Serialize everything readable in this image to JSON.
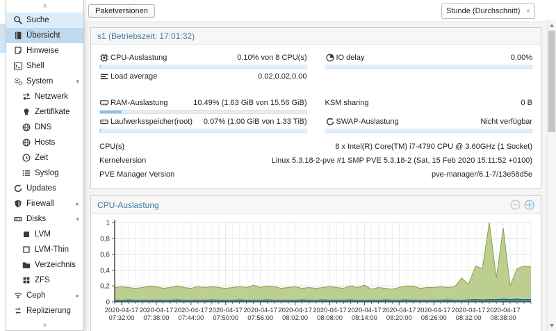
{
  "accent": {
    "selected_bg": "#bfd9ee",
    "hover_bg": "#ddeefb",
    "header_text": "#3e7ca6"
  },
  "sidebar": {
    "items": [
      {
        "label": "Suche",
        "icon": "search-icon",
        "indent": false,
        "state": "hover",
        "caret": ""
      },
      {
        "label": "Übersicht",
        "icon": "book-icon",
        "indent": false,
        "state": "selected",
        "caret": ""
      },
      {
        "label": "Hinweise",
        "icon": "note-icon",
        "indent": false,
        "state": "",
        "caret": ""
      },
      {
        "label": "Shell",
        "icon": "terminal-icon",
        "indent": false,
        "state": "",
        "caret": ""
      },
      {
        "label": "System",
        "icon": "gears-icon",
        "indent": false,
        "state": "",
        "caret": "down"
      },
      {
        "label": "Netzwerk",
        "icon": "exchange-icon",
        "indent": true,
        "state": "",
        "caret": ""
      },
      {
        "label": "Zertifikate",
        "icon": "certificate-icon",
        "indent": true,
        "state": "",
        "caret": ""
      },
      {
        "label": "DNS",
        "icon": "globe-icon",
        "indent": true,
        "state": "",
        "caret": ""
      },
      {
        "label": "Hosts",
        "icon": "globe-icon",
        "indent": true,
        "state": "",
        "caret": ""
      },
      {
        "label": "Zeit",
        "icon": "clock-icon",
        "indent": true,
        "state": "",
        "caret": ""
      },
      {
        "label": "Syslog",
        "icon": "list-icon",
        "indent": true,
        "state": "",
        "caret": ""
      },
      {
        "label": "Updates",
        "icon": "refresh-icon",
        "indent": false,
        "state": "",
        "caret": ""
      },
      {
        "label": "Firewall",
        "icon": "shield-icon",
        "indent": false,
        "state": "",
        "caret": "right"
      },
      {
        "label": "Disks",
        "icon": "hdd-icon",
        "indent": false,
        "state": "",
        "caret": "down"
      },
      {
        "label": "LVM",
        "icon": "square-filled-icon",
        "indent": true,
        "state": "",
        "caret": ""
      },
      {
        "label": "LVM-Thin",
        "icon": "square-outline-icon",
        "indent": true,
        "state": "",
        "caret": ""
      },
      {
        "label": "Verzeichnis",
        "icon": "folder-icon",
        "indent": true,
        "state": "",
        "caret": ""
      },
      {
        "label": "ZFS",
        "icon": "grid-icon",
        "indent": true,
        "state": "",
        "caret": ""
      },
      {
        "label": "Ceph",
        "icon": "ceph-icon",
        "indent": false,
        "state": "",
        "caret": "right"
      },
      {
        "label": "Replizierung",
        "icon": "replication-icon",
        "indent": false,
        "state": "",
        "caret": ""
      }
    ]
  },
  "toolbar": {
    "package_versions_label": "Paketversionen",
    "timeframe_value": "Stunde (Durchschnitt)"
  },
  "status_panel": {
    "title": "s1 (Betriebszeit: 17:01:32)",
    "left_rows": [
      {
        "icon": "processor-icon",
        "label": "CPU-Auslastung",
        "value": "0.10% von 8 CPU(s)",
        "bar": 0.001
      },
      {
        "icon": "bars-icon",
        "label": "Load average",
        "value": "0.02,0.02,0.00",
        "bar": null
      },
      {
        "gap": true
      },
      {
        "icon": "memory-icon",
        "label": "RAM-Auslastung",
        "value": "10.49% (1.63 GiB von 15.56 GiB)",
        "bar": 0.1049
      },
      {
        "icon": "hdd-icon",
        "label": "Laufwerksspeicher(root)",
        "value": "0.07% (1.00 GiB von 1.33 TiB)",
        "bar": 0.0007
      }
    ],
    "right_rows": [
      {
        "icon": "io-clock-icon",
        "label": "IO delay",
        "value": "0.00%",
        "bar": 0.0
      },
      {
        "spacer": true
      },
      {
        "gap": true
      },
      {
        "icon": null,
        "label": "KSM sharing",
        "value": "0 B",
        "bar": null
      },
      {
        "icon": "swap-icon",
        "label": "SWAP-Auslastung",
        "value": "Nicht verfügbar",
        "bar": 0.0
      }
    ],
    "info_rows": [
      {
        "label": "CPU(s)",
        "value": "8 x Intel(R) Core(TM) i7-4790 CPU @ 3.60GHz (1 Socket)"
      },
      {
        "label": "Kernelversion",
        "value": "Linux 5.3.18-2-pve #1 SMP PVE 5.3.18-2 (Sat, 15 Feb 2020 15:11:52 +0100)"
      },
      {
        "label": "PVE Manager Version",
        "value": "pve-manager/6.1-7/13e58d5e"
      }
    ]
  },
  "chart_panel": {
    "title": "CPU-Auslastung"
  },
  "chart_data": {
    "type": "area",
    "title": "CPU-Auslastung",
    "xlabel": "",
    "ylabel": "",
    "ylim": [
      0,
      1
    ],
    "grid": true,
    "legend": "none",
    "yticks": [
      {
        "v": 0,
        "label": "0"
      },
      {
        "v": 0.2,
        "label": "0,2"
      },
      {
        "v": 0.4,
        "label": "0,4"
      },
      {
        "v": 0.6,
        "label": "0,6"
      },
      {
        "v": 0.8,
        "label": "0,8"
      },
      {
        "v": 1,
        "label": "1"
      }
    ],
    "xticks": [
      {
        "date": "2020-04-17",
        "time": "07:32:00"
      },
      {
        "date": "2020-04-17",
        "time": "07:38:00"
      },
      {
        "date": "2020-04-17",
        "time": "07:44:00"
      },
      {
        "date": "2020-04-17",
        "time": "07:50:00"
      },
      {
        "date": "2020-04-17",
        "time": "07:56:00"
      },
      {
        "date": "2020-04-17",
        "time": "08:02:00"
      },
      {
        "date": "2020-04-17",
        "time": "08:08:00"
      },
      {
        "date": "2020-04-17",
        "time": "08:14:00"
      },
      {
        "date": "2020-04-17",
        "time": "08:20:00"
      },
      {
        "date": "2020-04-17",
        "time": "08:26:00"
      },
      {
        "date": "2020-04-17",
        "time": "08:32:00"
      },
      {
        "date": "2020-04-17",
        "time": "08:38:00"
      }
    ],
    "x_major_start_index": 1,
    "x_major_step": 5,
    "series": [
      {
        "name": "cpu",
        "fill": "#b9cc8a",
        "line": "#87a04b",
        "values": [
          0.18,
          0.19,
          0.18,
          0.17,
          0.18,
          0.2,
          0.19,
          0.17,
          0.18,
          0.2,
          0.18,
          0.17,
          0.19,
          0.18,
          0.19,
          0.18,
          0.17,
          0.18,
          0.19,
          0.18,
          0.21,
          0.18,
          0.2,
          0.19,
          0.17,
          0.18,
          0.19,
          0.17,
          0.18,
          0.17,
          0.18,
          0.19,
          0.18,
          0.17,
          0.2,
          0.18,
          0.21,
          0.16,
          0.18,
          0.17,
          0.16,
          0.18,
          0.2,
          0.2,
          0.17,
          0.18,
          0.18,
          0.19,
          0.18,
          0.19,
          0.3,
          0.22,
          0.45,
          0.42,
          1.0,
          0.3,
          0.93,
          0.2,
          0.42,
          0.45,
          0.44
        ]
      },
      {
        "name": "iowait",
        "fill": "#35909f",
        "line": "#135c6b",
        "values": [
          0.02,
          0.02,
          0.025,
          0.02,
          0.02,
          0.02,
          0.02,
          0.02,
          0.02,
          0.025,
          0.02,
          0.02,
          0.02,
          0.02,
          0.025,
          0.02,
          0.02,
          0.02,
          0.025,
          0.02,
          0.02,
          0.02,
          0.025,
          0.02,
          0.02,
          0.02,
          0.02,
          0.025,
          0.02,
          0.02,
          0.025,
          0.02,
          0.02,
          0.02,
          0.025,
          0.02,
          0.02,
          0.02,
          0.02,
          0.025,
          0.02,
          0.02,
          0.025,
          0.02,
          0.02,
          0.02,
          0.02,
          0.02,
          0.025,
          0.02,
          0.02,
          0.025,
          0.03,
          0.025,
          0.03,
          0.03,
          0.035,
          0.03,
          0.035,
          0.03,
          0.03
        ]
      }
    ]
  },
  "scrollbar": {
    "present": true
  }
}
